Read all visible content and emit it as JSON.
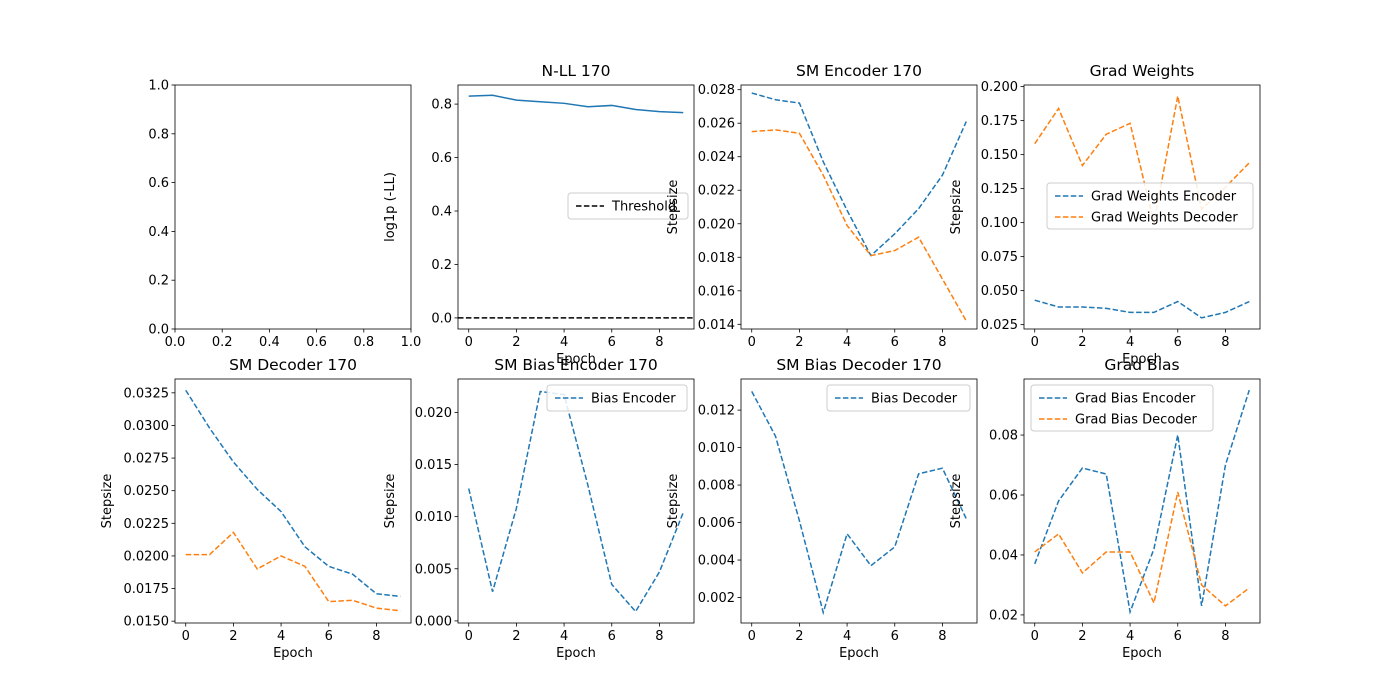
{
  "chart_data": [
    {
      "id": "empty",
      "type": "line",
      "title": "",
      "xlabel": "",
      "ylabel": "",
      "xlim": [
        0,
        1
      ],
      "ylim": [
        0,
        1
      ],
      "xticks": [
        0.0,
        0.2,
        0.4,
        0.6,
        0.8,
        1.0
      ],
      "xtick_labels": [
        "0.0",
        "0.2",
        "0.4",
        "0.6",
        "0.8",
        "1.0"
      ],
      "yticks": [
        0.0,
        0.2,
        0.4,
        0.6,
        0.8,
        1.0
      ],
      "ytick_labels": [
        "0.0",
        "0.2",
        "0.4",
        "0.6",
        "0.8",
        "1.0"
      ],
      "series": [],
      "legend": null
    },
    {
      "id": "nll",
      "type": "line",
      "title": "N-LL 170",
      "xlabel": "Epoch",
      "ylabel": "log1p (-LL)",
      "xlim": [
        -0.45,
        9.45
      ],
      "ylim": [
        -0.0415,
        0.8715
      ],
      "xticks": [
        0,
        2,
        4,
        6,
        8
      ],
      "xtick_labels": [
        "0",
        "2",
        "4",
        "6",
        "8"
      ],
      "yticks": [
        0.0,
        0.2,
        0.4,
        0.6,
        0.8
      ],
      "ytick_labels": [
        "0.0",
        "0.2",
        "0.4",
        "0.6",
        "0.8"
      ],
      "series": [
        {
          "color": "#1f77b4",
          "dash": "solid",
          "x": [
            0,
            1,
            2,
            3,
            4,
            5,
            6,
            7,
            8,
            9
          ],
          "values": [
            0.83,
            0.833,
            0.815,
            0.809,
            0.803,
            0.79,
            0.795,
            0.78,
            0.772,
            0.768
          ]
        },
        {
          "name": "Threshold",
          "color": "#000000",
          "dash": "dashed",
          "x": [
            -0.45,
            9.45
          ],
          "values": [
            0.0,
            0.0
          ]
        }
      ],
      "legend": {
        "location": "center-right",
        "entries": [
          "Threshold"
        ]
      }
    },
    {
      "id": "sm-encoder",
      "type": "line",
      "title": "SM Encoder 170",
      "xlabel": "",
      "ylabel": "Stepsize",
      "xlim": [
        -0.45,
        9.45
      ],
      "ylim": [
        0.01372,
        0.02828
      ],
      "xticks": [
        0,
        2,
        4,
        6,
        8
      ],
      "xtick_labels": [
        "0",
        "2",
        "4",
        "6",
        "8"
      ],
      "yticks": [
        0.014,
        0.016,
        0.018,
        0.02,
        0.022,
        0.024,
        0.026,
        0.028
      ],
      "ytick_labels": [
        "0.014",
        "0.016",
        "0.018",
        "0.020",
        "0.022",
        "0.024",
        "0.026",
        "0.028"
      ],
      "series": [
        {
          "color": "#1f77b4",
          "dash": "dashed",
          "x": [
            0,
            1,
            2,
            3,
            4,
            5,
            6,
            7,
            8,
            9
          ],
          "values": [
            0.0278,
            0.0274,
            0.0272,
            0.0237,
            0.0208,
            0.0181,
            0.0194,
            0.0209,
            0.0229,
            0.0261
          ]
        },
        {
          "color": "#ff7f0e",
          "dash": "dashed",
          "x": [
            0,
            1,
            2,
            3,
            4,
            5,
            6,
            7,
            8,
            9
          ],
          "values": [
            0.0255,
            0.0256,
            0.0254,
            0.0229,
            0.0199,
            0.0181,
            0.0184,
            0.0192,
            0.0167,
            0.0142
          ]
        }
      ],
      "legend": null
    },
    {
      "id": "grad-weights",
      "type": "line",
      "title": "Grad Weights",
      "xlabel": "Epoch",
      "ylabel": "Stepsize",
      "xlim": [
        -0.45,
        9.45
      ],
      "ylim": [
        0.0218,
        0.2012
      ],
      "xticks": [
        0,
        2,
        4,
        6,
        8
      ],
      "xtick_labels": [
        "0",
        "2",
        "4",
        "6",
        "8"
      ],
      "yticks": [
        0.025,
        0.05,
        0.075,
        0.1,
        0.125,
        0.15,
        0.175,
        0.2
      ],
      "ytick_labels": [
        "0.025",
        "0.050",
        "0.075",
        "0.100",
        "0.125",
        "0.150",
        "0.175",
        "0.200"
      ],
      "series": [
        {
          "name": "Grad Weights Encoder",
          "color": "#1f77b4",
          "dash": "dashed",
          "x": [
            0,
            1,
            2,
            3,
            4,
            5,
            6,
            7,
            8,
            9
          ],
          "values": [
            0.043,
            0.038,
            0.038,
            0.037,
            0.034,
            0.034,
            0.042,
            0.03,
            0.034,
            0.042
          ]
        },
        {
          "name": "Grad Weights Decoder",
          "color": "#ff7f0e",
          "dash": "dashed",
          "x": [
            0,
            1,
            2,
            3,
            4,
            5,
            6,
            7,
            8,
            9
          ],
          "values": [
            0.158,
            0.184,
            0.142,
            0.165,
            0.173,
            0.1,
            0.193,
            0.11,
            0.126,
            0.144
          ]
        }
      ],
      "legend": {
        "location": "center-right",
        "entries": [
          "Grad Weights Encoder",
          "Grad Weights Decoder"
        ]
      }
    },
    {
      "id": "sm-decoder",
      "type": "line",
      "title": "SM Decoder 170",
      "xlabel": "Epoch",
      "ylabel": "Stepsize",
      "xlim": [
        -0.45,
        9.45
      ],
      "ylim": [
        0.01486,
        0.03356
      ],
      "xticks": [
        0,
        2,
        4,
        6,
        8
      ],
      "xtick_labels": [
        "0",
        "2",
        "4",
        "6",
        "8"
      ],
      "yticks": [
        0.015,
        0.0175,
        0.02,
        0.0225,
        0.025,
        0.0275,
        0.03,
        0.0325
      ],
      "ytick_labels": [
        "0.0150",
        "0.0175",
        "0.0200",
        "0.0225",
        "0.0250",
        "0.0275",
        "0.0300",
        "0.0325"
      ],
      "series": [
        {
          "color": "#1f77b4",
          "dash": "dashed",
          "x": [
            0,
            1,
            2,
            3,
            4,
            5,
            6,
            7,
            8,
            9
          ],
          "values": [
            0.0327,
            0.0298,
            0.0272,
            0.0251,
            0.0234,
            0.0207,
            0.0192,
            0.0186,
            0.0171,
            0.0169
          ]
        },
        {
          "color": "#ff7f0e",
          "dash": "dashed",
          "x": [
            0,
            1,
            2,
            3,
            4,
            5,
            6,
            7,
            8,
            9
          ],
          "values": [
            0.0201,
            0.0201,
            0.0218,
            0.019,
            0.02,
            0.0192,
            0.0165,
            0.0166,
            0.016,
            0.0158
          ]
        }
      ],
      "legend": null
    },
    {
      "id": "sm-bias-encoder",
      "type": "line",
      "title": "SM Bias Encoder 170",
      "xlabel": "Epoch",
      "ylabel": "Stepsize",
      "xlim": [
        -0.45,
        9.45
      ],
      "ylim": [
        -0.0002,
        0.0232
      ],
      "xticks": [
        0,
        2,
        4,
        6,
        8
      ],
      "xtick_labels": [
        "0",
        "2",
        "4",
        "6",
        "8"
      ],
      "yticks": [
        0.0,
        0.005,
        0.01,
        0.015,
        0.02
      ],
      "ytick_labels": [
        "0.000",
        "0.005",
        "0.010",
        "0.015",
        "0.020"
      ],
      "series": [
        {
          "name": "Bias Encoder",
          "color": "#1f77b4",
          "dash": "dashed",
          "x": [
            0,
            1,
            2,
            3,
            4,
            5,
            6,
            7,
            8,
            9
          ],
          "values": [
            0.0127,
            0.0028,
            0.0108,
            0.022,
            0.0217,
            0.013,
            0.0035,
            0.0009,
            0.0047,
            0.0104
          ]
        }
      ],
      "legend": {
        "location": "top-right",
        "entries": [
          "Bias Encoder"
        ]
      }
    },
    {
      "id": "sm-bias-decoder",
      "type": "line",
      "title": "SM Bias Decoder 170",
      "xlabel": "Epoch",
      "ylabel": "Stepsize",
      "xlim": [
        -0.45,
        9.45
      ],
      "ylim": [
        0.00064,
        0.01366
      ],
      "xticks": [
        0,
        2,
        4,
        6,
        8
      ],
      "xtick_labels": [
        "0",
        "2",
        "4",
        "6",
        "8"
      ],
      "yticks": [
        0.002,
        0.004,
        0.006,
        0.008,
        0.01,
        0.012
      ],
      "ytick_labels": [
        "0.002",
        "0.004",
        "0.006",
        "0.008",
        "0.010",
        "0.012"
      ],
      "series": [
        {
          "name": "Bias Decoder",
          "color": "#1f77b4",
          "dash": "dashed",
          "x": [
            0,
            1,
            2,
            3,
            4,
            5,
            6,
            7,
            8,
            9
          ],
          "values": [
            0.013,
            0.0106,
            0.0061,
            0.0012,
            0.0054,
            0.0037,
            0.0047,
            0.0086,
            0.0089,
            0.0062
          ]
        }
      ],
      "legend": {
        "location": "top-right",
        "entries": [
          "Bias Decoder"
        ]
      }
    },
    {
      "id": "grad-bias",
      "type": "line",
      "title": "Grad Bias",
      "xlabel": "Epoch",
      "ylabel": "Stepsize",
      "xlim": [
        -0.45,
        9.45
      ],
      "ylim": [
        0.0173,
        0.0987
      ],
      "xticks": [
        0,
        2,
        4,
        6,
        8
      ],
      "xtick_labels": [
        "0",
        "2",
        "4",
        "6",
        "8"
      ],
      "yticks": [
        0.02,
        0.04,
        0.06,
        0.08
      ],
      "ytick_labels": [
        "0.02",
        "0.04",
        "0.06",
        "0.08"
      ],
      "series": [
        {
          "name": "Grad Bias Encoder",
          "color": "#1f77b4",
          "dash": "dashed",
          "x": [
            0,
            1,
            2,
            3,
            4,
            5,
            6,
            7,
            8,
            9
          ],
          "values": [
            0.037,
            0.058,
            0.069,
            0.067,
            0.021,
            0.042,
            0.08,
            0.023,
            0.07,
            0.095
          ]
        },
        {
          "name": "Grad Bias Decoder",
          "color": "#ff7f0e",
          "dash": "dashed",
          "x": [
            0,
            1,
            2,
            3,
            4,
            5,
            6,
            7,
            8,
            9
          ],
          "values": [
            0.041,
            0.047,
            0.034,
            0.041,
            0.041,
            0.024,
            0.061,
            0.03,
            0.023,
            0.029
          ]
        }
      ],
      "legend": {
        "location": "top-left",
        "entries": [
          "Grad Bias Encoder",
          "Grad Bias Decoder"
        ]
      }
    }
  ]
}
